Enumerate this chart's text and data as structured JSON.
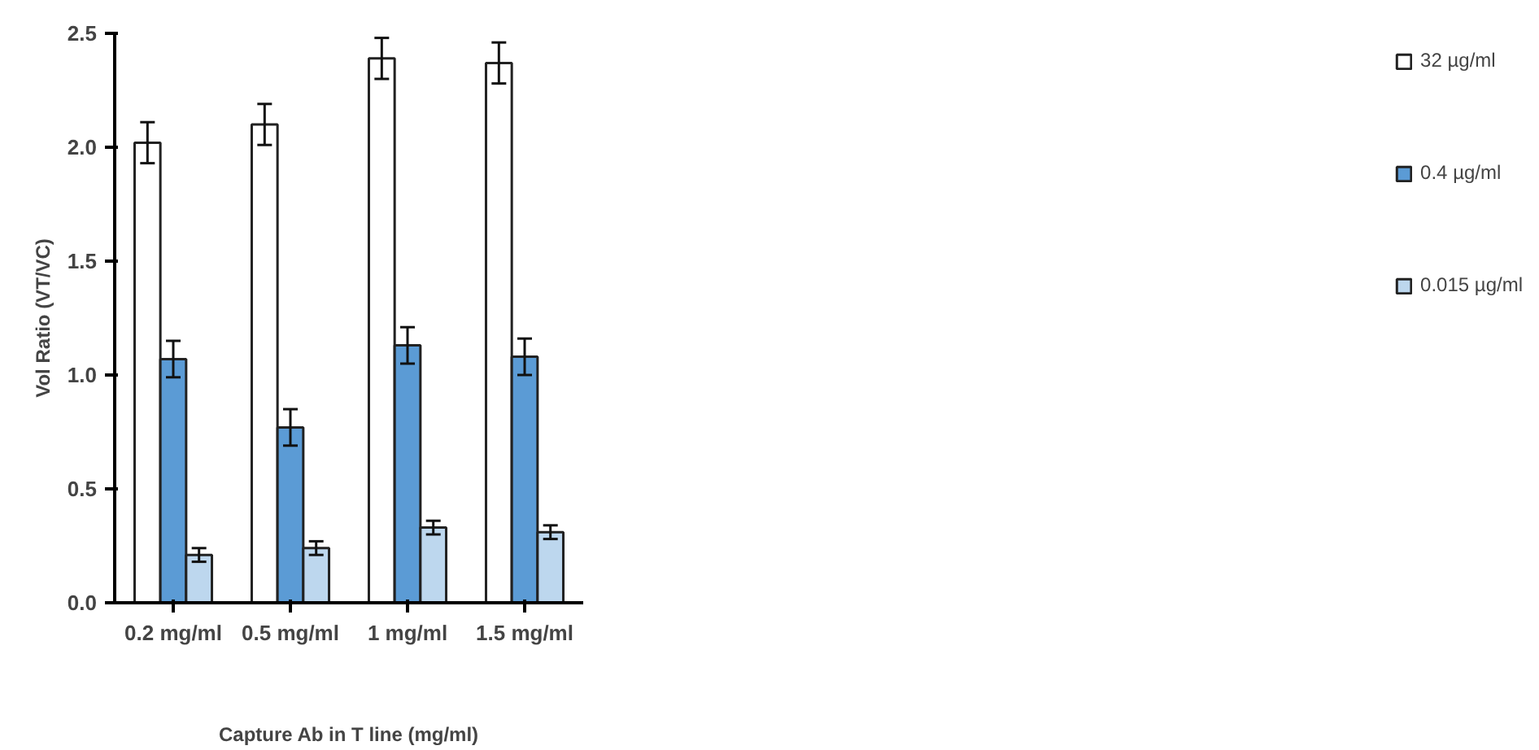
{
  "chart_data": {
    "type": "bar",
    "xlabel": "Capture Ab in T line (mg/ml)",
    "ylabel": "Vol Ratio (VT/VC)",
    "categories": [
      "0.2 mg/ml",
      "0.5 mg/ml",
      "1 mg/ml",
      "1.5 mg/ml"
    ],
    "series": [
      {
        "name": "32 µg/ml",
        "color": "#ffffff",
        "values": [
          2.02,
          2.1,
          2.39,
          2.37
        ],
        "errors": [
          0.09,
          0.09,
          0.09,
          0.09
        ]
      },
      {
        "name": "0.4 µg/ml",
        "color": "#5b9bd5",
        "values": [
          1.07,
          0.77,
          1.13,
          1.08
        ],
        "errors": [
          0.08,
          0.08,
          0.08,
          0.08
        ]
      },
      {
        "name": "0.015 µg/ml",
        "color": "#bdd7ee",
        "values": [
          0.21,
          0.24,
          0.33,
          0.31
        ],
        "errors": [
          0.03,
          0.03,
          0.03,
          0.03
        ]
      }
    ],
    "ylim": [
      0,
      2.5
    ],
    "yticks": [
      {
        "value": 0,
        "label": "0.0"
      },
      {
        "value": 0.5,
        "label": "0.5"
      },
      {
        "value": 1,
        "label": "1.0"
      },
      {
        "value": 1.5,
        "label": "1.5"
      },
      {
        "value": 2,
        "label": "2.0"
      },
      {
        "value": 2.5,
        "label": "2.5"
      }
    ],
    "grid": false,
    "legend": "right"
  }
}
